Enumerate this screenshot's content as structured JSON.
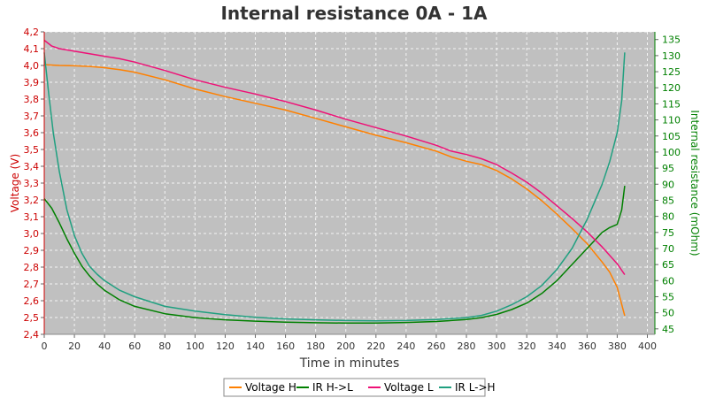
{
  "chart_data": {
    "type": "line",
    "title": "Internal resistance  0A - 1A",
    "xlabel": "Time in minutes",
    "ylabel_left": "Voltage (V)",
    "ylabel_right": "Internal resistance (mOhm)",
    "xlim": [
      0,
      405
    ],
    "ylim_left": [
      2.4,
      4.2
    ],
    "ylim_right": [
      43.3,
      137.4
    ],
    "x_ticks": [
      0,
      20,
      40,
      60,
      80,
      100,
      120,
      140,
      160,
      180,
      200,
      220,
      240,
      260,
      280,
      300,
      320,
      340,
      360,
      380,
      400
    ],
    "y_ticks_left": [
      "2,4",
      "2,5",
      "2,6",
      "2,7",
      "2,8",
      "2,9",
      "3,0",
      "3,1",
      "3,2",
      "3,3",
      "3,4",
      "3,5",
      "3,6",
      "3,7",
      "3,8",
      "3,9",
      "4,0",
      "4,1",
      "4,2"
    ],
    "y_ticks_right": [
      45,
      50,
      55,
      60,
      65,
      70,
      75,
      80,
      85,
      90,
      95,
      100,
      105,
      110,
      115,
      120,
      125,
      130,
      135
    ],
    "grid": true,
    "plot_background": "#c0c0c0",
    "legend_position": "bottom",
    "colors": {
      "title": "#333333",
      "left_axis": "#cc0000",
      "right_axis": "#008000",
      "x_axis_label": "#333333"
    },
    "series": [
      {
        "name": "Voltage H",
        "axis": "left",
        "color": "#ff8000",
        "x": [
          0,
          10,
          20,
          30,
          40,
          50,
          60,
          80,
          100,
          120,
          140,
          160,
          180,
          200,
          220,
          240,
          260,
          270,
          280,
          290,
          300,
          310,
          320,
          330,
          340,
          350,
          360,
          370,
          375,
          380,
          385
        ],
        "y": [
          4.005,
          4.0,
          3.998,
          3.994,
          3.987,
          3.975,
          3.96,
          3.915,
          3.86,
          3.815,
          3.775,
          3.735,
          3.685,
          3.635,
          3.585,
          3.54,
          3.49,
          3.455,
          3.43,
          3.41,
          3.375,
          3.325,
          3.265,
          3.195,
          3.115,
          3.03,
          2.94,
          2.83,
          2.77,
          2.68,
          2.51
        ]
      },
      {
        "name": "IR H->L",
        "axis": "right",
        "color": "#008000",
        "x": [
          0,
          5,
          10,
          15,
          20,
          25,
          30,
          35,
          40,
          50,
          60,
          80,
          100,
          120,
          140,
          160,
          180,
          200,
          220,
          240,
          260,
          280,
          290,
          300,
          310,
          320,
          330,
          340,
          350,
          360,
          365,
          370,
          375,
          380,
          383,
          385
        ],
        "y": [
          85.5,
          82.5,
          78,
          73,
          68.5,
          64.5,
          61.5,
          59,
          57,
          54,
          52,
          49.7,
          48.5,
          47.8,
          47.4,
          47.1,
          46.9,
          46.8,
          46.8,
          47,
          47.3,
          47.9,
          48.5,
          49.5,
          51,
          53,
          56,
          60,
          65,
          70,
          72.5,
          75,
          76.5,
          77.5,
          82,
          89.5
        ]
      },
      {
        "name": "Voltage L",
        "axis": "left",
        "color": "#ee1177",
        "x": [
          0,
          5,
          10,
          20,
          30,
          40,
          50,
          60,
          80,
          100,
          120,
          140,
          160,
          180,
          200,
          220,
          240,
          260,
          270,
          280,
          290,
          300,
          310,
          320,
          330,
          340,
          350,
          360,
          370,
          375,
          380,
          385
        ],
        "y": [
          4.15,
          4.115,
          4.1,
          4.085,
          4.07,
          4.055,
          4.04,
          4.02,
          3.97,
          3.915,
          3.87,
          3.83,
          3.785,
          3.735,
          3.68,
          3.63,
          3.58,
          3.525,
          3.49,
          3.47,
          3.445,
          3.41,
          3.36,
          3.305,
          3.24,
          3.165,
          3.09,
          3.01,
          2.92,
          2.87,
          2.82,
          2.755
        ]
      },
      {
        "name": "IR L->H",
        "axis": "right",
        "color": "#20a080",
        "x": [
          0,
          3,
          6,
          10,
          15,
          20,
          25,
          30,
          35,
          40,
          50,
          60,
          80,
          100,
          120,
          140,
          160,
          180,
          200,
          220,
          240,
          260,
          280,
          290,
          300,
          310,
          320,
          330,
          340,
          350,
          360,
          370,
          375,
          380,
          383,
          385
        ],
        "y": [
          131,
          118,
          106,
          94,
          82,
          74,
          68.5,
          64.5,
          62,
          60,
          57,
          55,
          52,
          50.5,
          49.4,
          48.6,
          48.1,
          47.8,
          47.6,
          47.5,
          47.6,
          47.9,
          48.5,
          49.2,
          50.5,
          52.5,
          55,
          58.5,
          63.5,
          70,
          79,
          90,
          97,
          106,
          116,
          131
        ]
      }
    ]
  }
}
